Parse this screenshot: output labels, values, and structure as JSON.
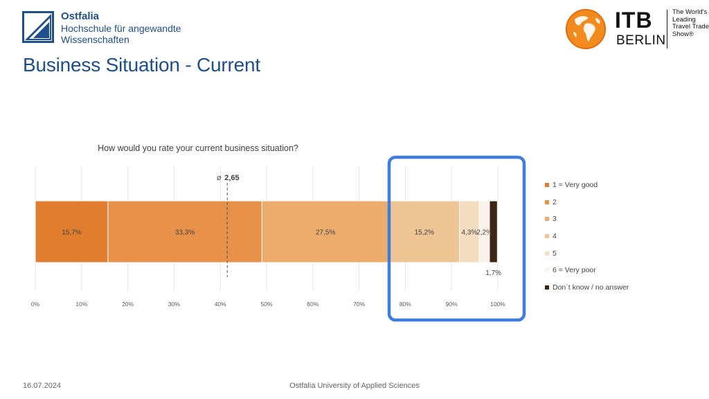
{
  "header": {
    "logo_lines": [
      "Ostfalia",
      "Hochschule für angewandte",
      "Wissenschaften"
    ],
    "title": "Business Situation - Current"
  },
  "itb_logo": {
    "word": "ITB",
    "city": "BERLIN",
    "tagline": [
      "The World's",
      "Leading",
      "Travel Trade",
      "Show®"
    ]
  },
  "footer": {
    "date": "16.07.2024",
    "center": "Ostfalia University of Applied Sciences"
  },
  "colors": {
    "brand_blue": "#1f4e8c",
    "highlight_box": "#3f7ee0"
  },
  "chart_data": {
    "type": "bar",
    "orientation": "horizontal-stacked-100",
    "title": "How would you rate your current business situation?",
    "categories": [
      "1 = Very good",
      "2",
      "3",
      "4",
      "5",
      "6 = Very poor",
      "Don´t know / no answer"
    ],
    "values": [
      15.7,
      33.3,
      27.5,
      15.2,
      4.3,
      2.2,
      1.7
    ],
    "value_labels": [
      "15,7%",
      "33,3%",
      "27,5%",
      "15,2%",
      "4,3%",
      "2,2%",
      "1,7%"
    ],
    "colors": [
      "#e07d2f",
      "#e8914a",
      "#ebac6c",
      "#efc595",
      "#f4dcc0",
      "#fbf3ea",
      "#3d2614"
    ],
    "mean": {
      "value": 2.65,
      "label": "2,65",
      "marker_pct": 41.5
    },
    "xlim": [
      0,
      100
    ],
    "x_ticks": [
      "0%",
      "10%",
      "20%",
      "30%",
      "40%",
      "50%",
      "60%",
      "70%",
      "80%",
      "90%",
      "100%"
    ],
    "grid": true,
    "legend_position": "right",
    "highlight_range_pct": [
      76.5,
      100
    ]
  }
}
